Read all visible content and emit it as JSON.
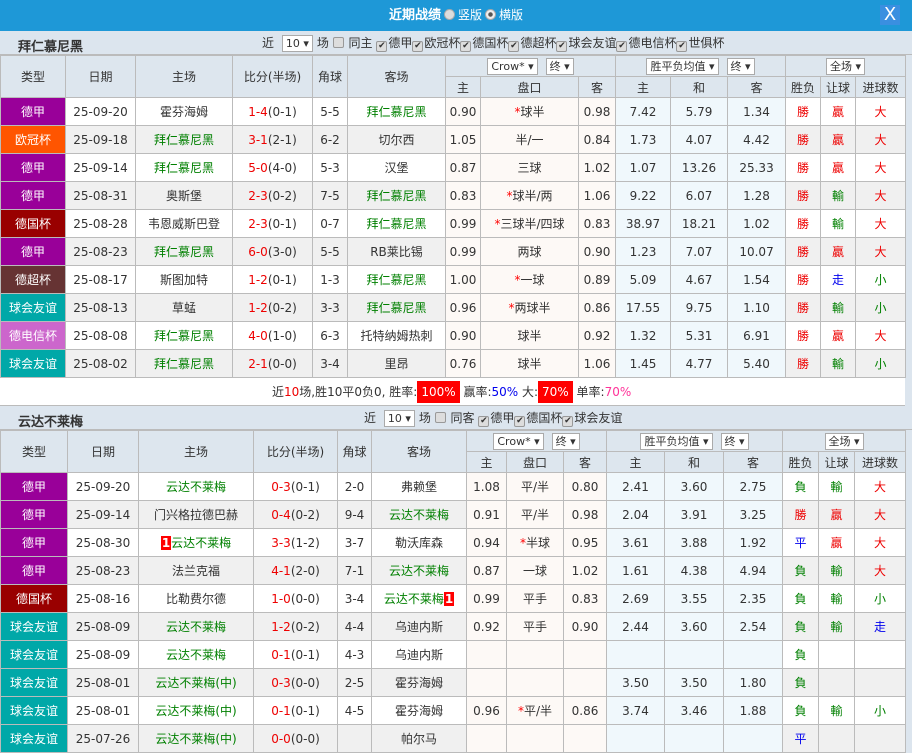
{
  "window": {
    "title": "近期战绩",
    "option_vertical": "竖版",
    "option_horizontal": "横版",
    "selected": "横版",
    "close_label": "X"
  },
  "league_colors": {
    "德甲": "#990099",
    "欧冠杯": "#ff5500",
    "德国杯": "#990000",
    "德超杯": "#663333",
    "球会友谊": "#00a8a8",
    "德电信杯": "#cc66cc"
  },
  "headers": {
    "type": "类型",
    "date": "日期",
    "home": "主场",
    "score": "比分(半场)",
    "corner": "角球",
    "away": "客场",
    "h": "主",
    "line": "盘口",
    "a": "客",
    "w": "主",
    "d": "和",
    "l": "客",
    "result": "胜负",
    "handicap": "让球",
    "goals": "进球数",
    "company": "Crow*",
    "company_stage": "终",
    "odds_type": "胜平负均值",
    "odds_stage": "终",
    "period": "全场"
  },
  "sections": [
    {
      "team": "拜仁慕尼黑",
      "recent_label": "近",
      "recent_count": "10",
      "games_label": "场",
      "same_label": "同主",
      "filters": [
        "德甲",
        "欧冠杯",
        "德国杯",
        "德超杯",
        "球会友谊",
        "德电信杯",
        "世俱杯"
      ],
      "rows": [
        {
          "league": "德甲",
          "date": "25-09-20",
          "home": "霍芬海姆",
          "score": "1-4",
          "half": "(0-1)",
          "corner": "5-5",
          "away": "拜仁慕尼黑",
          "focus": "away",
          "oh": "0.90",
          "star": true,
          "line": "球半",
          "oa": "0.98",
          "w": "7.42",
          "d": "5.79",
          "l": "1.34",
          "res": "勝",
          "hc": "贏",
          "gl": "大"
        },
        {
          "league": "欧冠杯",
          "date": "25-09-18",
          "home": "拜仁慕尼黑",
          "score": "3-1",
          "half": "(2-1)",
          "corner": "6-2",
          "away": "切尔西",
          "focus": "home",
          "oh": "1.05",
          "star": false,
          "line": "半/一",
          "oa": "0.84",
          "w": "1.73",
          "d": "4.07",
          "l": "4.42",
          "res": "勝",
          "hc": "贏",
          "gl": "大"
        },
        {
          "league": "德甲",
          "date": "25-09-14",
          "home": "拜仁慕尼黑",
          "score": "5-0",
          "half": "(4-0)",
          "corner": "5-3",
          "away": "汉堡",
          "focus": "home",
          "oh": "0.87",
          "star": false,
          "line": "三球",
          "oa": "1.02",
          "w": "1.07",
          "d": "13.26",
          "l": "25.33",
          "res": "勝",
          "hc": "贏",
          "gl": "大"
        },
        {
          "league": "德甲",
          "date": "25-08-31",
          "home": "奥斯堡",
          "score": "2-3",
          "half": "(0-2)",
          "corner": "7-5",
          "away": "拜仁慕尼黑",
          "focus": "away",
          "oh": "0.83",
          "star": true,
          "line": "球半/两",
          "oa": "1.06",
          "w": "9.22",
          "d": "6.07",
          "l": "1.28",
          "res": "勝",
          "hc": "輸",
          "gl": "大"
        },
        {
          "league": "德国杯",
          "date": "25-08-28",
          "home": "韦恩威斯巴登",
          "score": "2-3",
          "half": "(0-1)",
          "corner": "0-7",
          "away": "拜仁慕尼黑",
          "focus": "away",
          "oh": "0.99",
          "star": true,
          "line": "三球半/四球",
          "oa": "0.83",
          "w": "38.97",
          "d": "18.21",
          "l": "1.02",
          "res": "勝",
          "hc": "輸",
          "gl": "大"
        },
        {
          "league": "德甲",
          "date": "25-08-23",
          "home": "拜仁慕尼黑",
          "score": "6-0",
          "half": "(3-0)",
          "corner": "5-5",
          "away": "RB莱比锡",
          "focus": "home",
          "oh": "0.99",
          "star": false,
          "line": "两球",
          "oa": "0.90",
          "w": "1.23",
          "d": "7.07",
          "l": "10.07",
          "res": "勝",
          "hc": "贏",
          "gl": "大"
        },
        {
          "league": "德超杯",
          "date": "25-08-17",
          "home": "斯图加特",
          "score": "1-2",
          "half": "(0-1)",
          "corner": "1-3",
          "away": "拜仁慕尼黑",
          "focus": "away",
          "oh": "1.00",
          "star": true,
          "line": "一球",
          "oa": "0.89",
          "w": "5.09",
          "d": "4.67",
          "l": "1.54",
          "res": "勝",
          "hc": "走",
          "gl": "小"
        },
        {
          "league": "球会友谊",
          "date": "25-08-13",
          "home": "草蜢",
          "score": "1-2",
          "half": "(0-2)",
          "corner": "3-3",
          "away": "拜仁慕尼黑",
          "focus": "away",
          "oh": "0.96",
          "star": true,
          "line": "两球半",
          "oa": "0.86",
          "w": "17.55",
          "d": "9.75",
          "l": "1.10",
          "res": "勝",
          "hc": "輸",
          "gl": "小"
        },
        {
          "league": "德电信杯",
          "date": "25-08-08",
          "home": "拜仁慕尼黑",
          "score": "4-0",
          "half": "(1-0)",
          "corner": "6-3",
          "away": "托特纳姆热刺",
          "focus": "home",
          "oh": "0.90",
          "star": false,
          "line": "球半",
          "oa": "0.92",
          "w": "1.32",
          "d": "5.31",
          "l": "6.91",
          "res": "勝",
          "hc": "贏",
          "gl": "大"
        },
        {
          "league": "球会友谊",
          "date": "25-08-02",
          "home": "拜仁慕尼黑",
          "score": "2-1",
          "half": "(0-0)",
          "corner": "3-4",
          "away": "里昂",
          "focus": "home",
          "oh": "0.76",
          "star": false,
          "line": "球半",
          "oa": "1.06",
          "w": "1.45",
          "d": "4.77",
          "l": "5.40",
          "res": "勝",
          "hc": "輸",
          "gl": "小"
        }
      ],
      "summary": {
        "p1": "近",
        "games": "10",
        "p2": "场,胜10平0负0, 胜率:",
        "win_rate": "100%",
        "p3": " 赢率:",
        "hc_rate": "50%",
        "p4": " 大:",
        "big_rate": "70%",
        "p5": " 单率:",
        "odd_rate": "70%"
      }
    },
    {
      "team": "云达不莱梅",
      "recent_label": "近",
      "recent_count": "10",
      "games_label": "场",
      "same_label": "同客",
      "filters": [
        "德甲",
        "德国杯",
        "球会友谊"
      ],
      "rows": [
        {
          "league": "德甲",
          "date": "25-09-20",
          "home": "云达不莱梅",
          "score": "0-3",
          "half": "(0-1)",
          "corner": "2-0",
          "away": "弗赖堡",
          "focus": "home",
          "oh": "1.08",
          "star": false,
          "line": "平/半",
          "oa": "0.80",
          "w": "2.41",
          "d": "3.60",
          "l": "2.75",
          "res": "負",
          "hc": "輸",
          "gl": "大"
        },
        {
          "league": "德甲",
          "date": "25-09-14",
          "home": "门兴格拉德巴赫",
          "score": "0-4",
          "half": "(0-2)",
          "corner": "9-4",
          "away": "云达不莱梅",
          "focus": "away",
          "oh": "0.91",
          "star": false,
          "line": "平/半",
          "oa": "0.98",
          "w": "2.04",
          "d": "3.91",
          "l": "3.25",
          "res": "勝",
          "hc": "贏",
          "gl": "大"
        },
        {
          "league": "德甲",
          "date": "25-08-30",
          "home": "云达不莱梅",
          "home_card": "1",
          "score": "3-3",
          "half": "(1-2)",
          "corner": "3-7",
          "away": "勒沃库森",
          "focus": "home",
          "oh": "0.94",
          "star": true,
          "line": "半球",
          "oa": "0.95",
          "w": "3.61",
          "d": "3.88",
          "l": "1.92",
          "res": "平",
          "hc": "贏",
          "gl": "大"
        },
        {
          "league": "德甲",
          "date": "25-08-23",
          "home": "法兰克福",
          "score": "4-1",
          "half": "(2-0)",
          "corner": "7-1",
          "away": "云达不莱梅",
          "focus": "away",
          "oh": "0.87",
          "star": false,
          "line": "一球",
          "oa": "1.02",
          "w": "1.61",
          "d": "4.38",
          "l": "4.94",
          "res": "負",
          "hc": "輸",
          "gl": "大"
        },
        {
          "league": "德国杯",
          "date": "25-08-16",
          "home": "比勒费尔德",
          "score": "1-0",
          "half": "(0-0)",
          "corner": "3-4",
          "away": "云达不莱梅",
          "away_card": "1",
          "focus": "away",
          "oh": "0.99",
          "star": false,
          "line": "平手",
          "oa": "0.83",
          "w": "2.69",
          "d": "3.55",
          "l": "2.35",
          "res": "負",
          "hc": "輸",
          "gl": "小"
        },
        {
          "league": "球会友谊",
          "date": "25-08-09",
          "home": "云达不莱梅",
          "score": "1-2",
          "half": "(0-2)",
          "corner": "4-4",
          "away": "乌迪内斯",
          "focus": "home",
          "oh": "0.92",
          "star": false,
          "line": "平手",
          "oa": "0.90",
          "w": "2.44",
          "d": "3.60",
          "l": "2.54",
          "res": "負",
          "hc": "輸",
          "gl": "走"
        },
        {
          "league": "球会友谊",
          "date": "25-08-09",
          "home": "云达不莱梅",
          "score": "0-1",
          "half": "(0-1)",
          "corner": "4-3",
          "away": "乌迪内斯",
          "focus": "home",
          "oh": "",
          "star": false,
          "line": "",
          "oa": "",
          "w": "",
          "d": "",
          "l": "",
          "res": "負",
          "hc": "",
          "gl": ""
        },
        {
          "league": "球会友谊",
          "date": "25-08-01",
          "home": "云达不莱梅(中)",
          "score": "0-3",
          "half": "(0-0)",
          "corner": "2-5",
          "away": "霍芬海姆",
          "focus": "home",
          "oh": "",
          "star": false,
          "line": "",
          "oa": "",
          "w": "3.50",
          "d": "3.50",
          "l": "1.80",
          "res": "負",
          "hc": "",
          "gl": ""
        },
        {
          "league": "球会友谊",
          "date": "25-08-01",
          "home": "云达不莱梅(中)",
          "score": "0-1",
          "half": "(0-1)",
          "corner": "4-5",
          "away": "霍芬海姆",
          "focus": "home",
          "oh": "0.96",
          "star": true,
          "line": "平/半",
          "oa": "0.86",
          "w": "3.74",
          "d": "3.46",
          "l": "1.88",
          "res": "負",
          "hc": "輸",
          "gl": "小"
        },
        {
          "league": "球会友谊",
          "date": "25-07-26",
          "home": "云达不莱梅(中)",
          "score": "0-0",
          "half": "(0-0)",
          "corner": "",
          "away": "帕尔马",
          "focus": "home",
          "oh": "",
          "star": false,
          "line": "",
          "oa": "",
          "w": "",
          "d": "",
          "l": "",
          "res": "平",
          "hc": "",
          "gl": ""
        }
      ]
    }
  ]
}
